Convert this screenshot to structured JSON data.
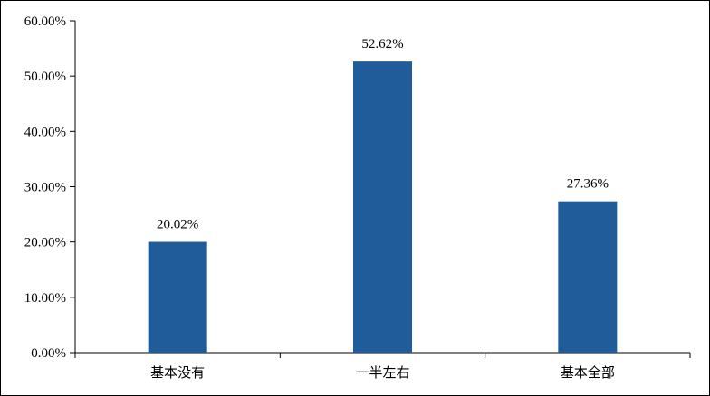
{
  "chart_data": {
    "type": "bar",
    "categories": [
      "基本没有",
      "一半左右",
      "基本全部"
    ],
    "values": [
      20.02,
      52.62,
      27.36
    ],
    "data_labels": [
      "20.02%",
      "52.62%",
      "27.36%"
    ],
    "ylim": [
      0,
      60
    ],
    "yticks": [
      0,
      10,
      20,
      30,
      40,
      50,
      60
    ],
    "ytick_labels": [
      "0.00%",
      "10.00%",
      "20.00%",
      "30.00%",
      "40.00%",
      "50.00%",
      "60.00%"
    ],
    "bar_color": "#1f5c99",
    "grid": false,
    "legend": "none"
  }
}
